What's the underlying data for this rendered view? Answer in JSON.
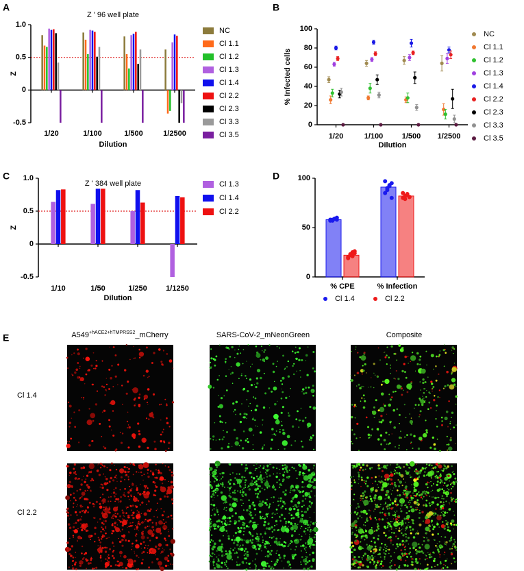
{
  "chart_data": [
    {
      "type": "bar",
      "label": "A",
      "title": "Z ' 96 well plate",
      "x_label": "Dilution",
      "y_label": "Z",
      "categories": [
        "1/20",
        "1/100",
        "1/500",
        "1/2500"
      ],
      "ylim": [
        -0.5,
        1
      ],
      "yticks": [
        -0.5,
        0,
        0.5,
        {
          "value": 1,
          "label": "1.0"
        }
      ],
      "ref_line": 0.5,
      "ref_line_color": "#e02020",
      "legend": "right",
      "series": [
        {
          "name": "NC",
          "color": "#8c7b3c",
          "values": [
            0.84,
            0.88,
            0.82,
            0.62
          ]
        },
        {
          "name": "Cl 1.1",
          "color": "#ff6a1a",
          "values": [
            0.68,
            0.77,
            0.55,
            -0.36
          ]
        },
        {
          "name": "Cl 1.2",
          "color": "#22c02a",
          "values": [
            0.66,
            0.55,
            0.33,
            -0.32
          ]
        },
        {
          "name": "Cl 1.3",
          "color": "#b060e0",
          "values": [
            0.94,
            0.92,
            0.84,
            0.73
          ]
        },
        {
          "name": "Cl 1.4",
          "color": "#1010ee",
          "values": [
            0.92,
            0.91,
            0.86,
            0.85
          ]
        },
        {
          "name": "Cl 2.2",
          "color": "#ee1111",
          "values": [
            0.93,
            0.89,
            0.89,
            0.83
          ]
        },
        {
          "name": "Cl 2.3",
          "color": "#000000",
          "values": [
            0.87,
            0.51,
            0.4,
            -0.5
          ]
        },
        {
          "name": "Cl 3.3",
          "color": "#9a9a9a",
          "values": [
            0.42,
            0.66,
            0.62,
            -0.2
          ]
        },
        {
          "name": "Cl 3.5",
          "color": "#7a1fa0",
          "values": [
            -0.5,
            -0.5,
            -0.5,
            -0.5
          ]
        }
      ]
    },
    {
      "type": "scatter",
      "label": "B",
      "x_label": "Dilution",
      "y_label": "% Infected cells",
      "categories": [
        "1/20",
        "1/100",
        "1/500",
        "1/2500"
      ],
      "ylim": [
        0,
        100
      ],
      "yticks": [
        0,
        20,
        40,
        60,
        80,
        100
      ],
      "legend": "right",
      "series": [
        {
          "name": "NC",
          "color": "#a08a50",
          "values": [
            47,
            64,
            67,
            64
          ],
          "errors": [
            3,
            3,
            4,
            8
          ]
        },
        {
          "name": "Cl 1.1",
          "color": "#f07830",
          "values": [
            26,
            28,
            26,
            16
          ],
          "errors": [
            4,
            2,
            3,
            6
          ]
        },
        {
          "name": "Cl 1.2",
          "color": "#30c030",
          "values": [
            33,
            38,
            28,
            11
          ],
          "errors": [
            4,
            5,
            5,
            5
          ]
        },
        {
          "name": "Cl 1.3",
          "color": "#a040e0",
          "values": [
            63,
            68,
            70,
            69
          ],
          "errors": [
            2,
            2,
            3,
            5
          ]
        },
        {
          "name": "Cl 1.4",
          "color": "#1a1ae6",
          "values": [
            80,
            86,
            85,
            78
          ],
          "errors": [
            2,
            2,
            4,
            3
          ]
        },
        {
          "name": "Cl 2.2",
          "color": "#e82020",
          "values": [
            69,
            74,
            75,
            73
          ],
          "errors": [
            2,
            2,
            2,
            4
          ]
        },
        {
          "name": "Cl 2.3",
          "color": "#000000",
          "values": [
            32,
            47,
            49,
            27
          ],
          "errors": [
            4,
            5,
            6,
            10
          ]
        },
        {
          "name": "Cl 3.3",
          "color": "#909090",
          "values": [
            34,
            31,
            18,
            6
          ],
          "errors": [
            4,
            3,
            3,
            4
          ]
        },
        {
          "name": "Cl 3.5",
          "color": "#5a1a40",
          "values": [
            0,
            0,
            0,
            0
          ],
          "errors": [
            0,
            0,
            0,
            0
          ]
        }
      ]
    },
    {
      "type": "bar",
      "label": "C",
      "title": "Z ' 384 well plate",
      "x_label": "Dilution",
      "y_label": "Z",
      "categories": [
        "1/10",
        "1/50",
        "1/250",
        "1/1250"
      ],
      "ylim": [
        -0.5,
        1
      ],
      "yticks": [
        -0.5,
        0,
        0.5,
        {
          "value": 1,
          "label": "1.0"
        }
      ],
      "ref_line": 0.5,
      "ref_line_color": "#e02020",
      "legend": "right",
      "series": [
        {
          "name": "Cl 1.3",
          "color": "#b060e0",
          "values": [
            0.64,
            0.61,
            0.5,
            -0.5
          ]
        },
        {
          "name": "Cl 1.4",
          "color": "#1010ee",
          "values": [
            0.82,
            0.84,
            0.82,
            0.73
          ]
        },
        {
          "name": "Cl 2.2",
          "color": "#ee1111",
          "values": [
            0.83,
            0.84,
            0.63,
            0.71
          ]
        }
      ]
    },
    {
      "type": "bar",
      "label": "D",
      "categories": [
        "% CPE",
        "% Infection"
      ],
      "ylim": [
        0,
        100
      ],
      "yticks": [
        0,
        50,
        100
      ],
      "legend": "bottom",
      "series": [
        {
          "name": "Cl 1.4",
          "color": "#1a1aee",
          "values": [
            58,
            91
          ],
          "points": [
            [
              57,
              58,
              59,
              60,
              58,
              57,
              59,
              58
            ],
            [
              85,
              88,
              92,
              95,
              97,
              90,
              93,
              80
            ]
          ]
        },
        {
          "name": "Cl 2.2",
          "color": "#ee1a1a",
          "values": [
            22,
            82
          ],
          "points": [
            [
              20,
              22,
              25,
              24,
              19,
              23,
              21,
              26
            ],
            [
              80,
              82,
              84,
              81,
              85,
              79,
              83,
              81
            ]
          ]
        }
      ]
    }
  ],
  "image_panel": {
    "label": "E",
    "column_titles": [
      [
        "A549",
        "+hACE2+hTMPRSS2",
        "_mCherry"
      ],
      [
        "SARS-CoV-2_mNeonGreen"
      ],
      [
        "Composite"
      ]
    ],
    "row_labels": [
      "Cl 1.4",
      "Cl 2.2"
    ]
  }
}
